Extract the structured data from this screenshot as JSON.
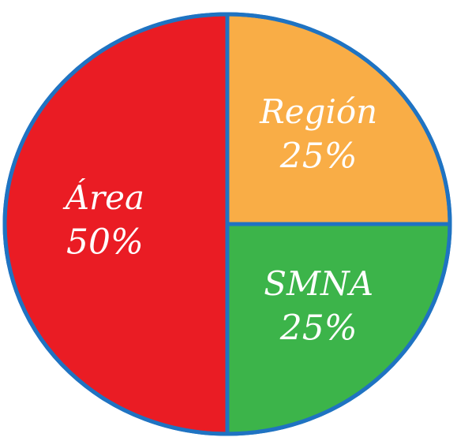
{
  "chart_data": {
    "type": "pie",
    "title": "",
    "start_angle_deg": 0,
    "direction": "clockwise",
    "outline_color": "#1f73c2",
    "background": "#ffffff",
    "slices": [
      {
        "label": "Región",
        "value": 25,
        "value_label": "25%",
        "color": "#f9ad46"
      },
      {
        "label": "SMNA",
        "value": 25,
        "value_label": "25%",
        "color": "#3cb44a"
      },
      {
        "label": "Área",
        "value": 50,
        "value_label": "50%",
        "color": "#ea1c24"
      }
    ]
  }
}
